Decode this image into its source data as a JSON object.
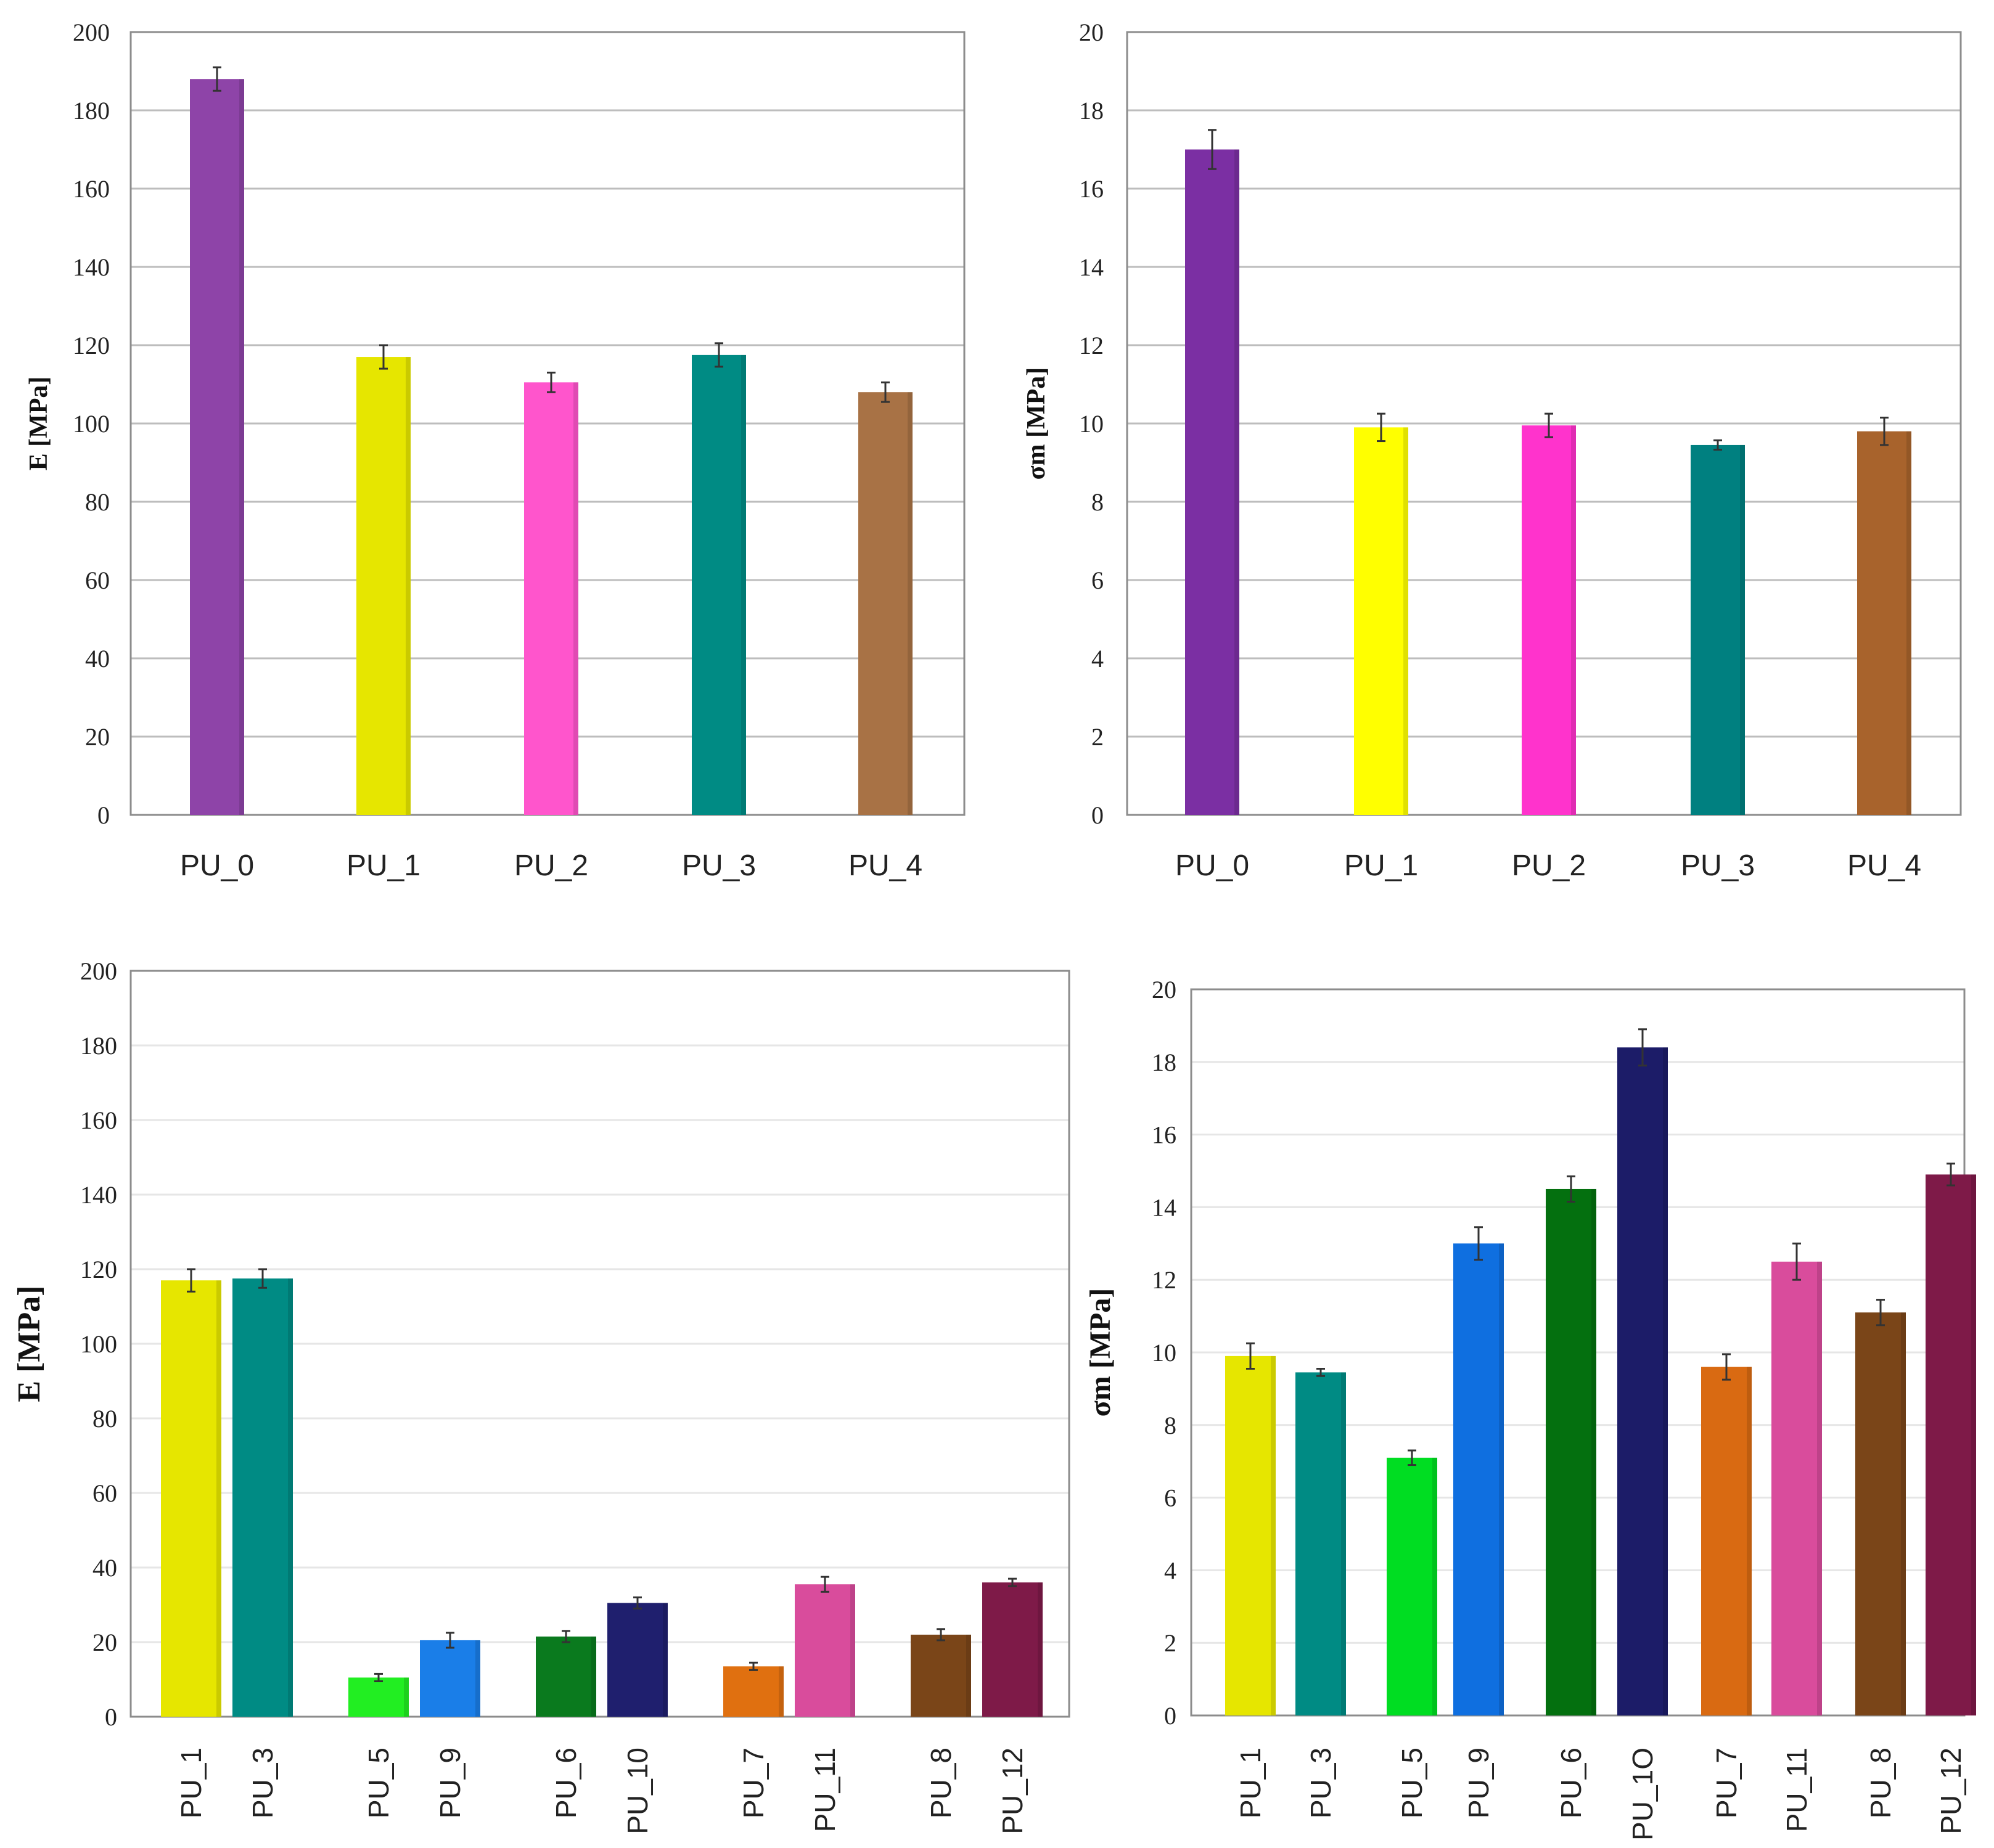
{
  "chart_data": [
    {
      "type": "bar",
      "panel": "top-left",
      "title": "",
      "xlabel": "",
      "ylabel": "E [MPa]",
      "ylim": [
        0,
        200
      ],
      "yticks": [
        "0",
        "20",
        "40",
        "60",
        "80",
        "100",
        "120",
        "140",
        "160",
        "180",
        "200"
      ],
      "categories": [
        "PU_0",
        "PU_1",
        "PU_2",
        "PU_3",
        "PU_4"
      ],
      "values": [
        188,
        117,
        110.5,
        117.5,
        108
      ],
      "errors": [
        3,
        3,
        2.5,
        3,
        2.5
      ],
      "colors": [
        "#8e44a8",
        "#e6e600",
        "#ff55cc",
        "#008b84",
        "#a87245"
      ]
    },
    {
      "type": "bar",
      "panel": "top-right",
      "title": "",
      "xlabel": "",
      "ylabel": "σm [MPa]",
      "ylim": [
        0,
        20
      ],
      "yticks": [
        "0",
        "2",
        "4",
        "6",
        "8",
        "10",
        "12",
        "14",
        "16",
        "18",
        "20"
      ],
      "categories": [
        "PU_0",
        "PU_1",
        "PU_2",
        "PU_3",
        "PU_4"
      ],
      "values": [
        17,
        9.9,
        9.95,
        9.45,
        9.8
      ],
      "errors": [
        0.5,
        0.35,
        0.3,
        0.12,
        0.35
      ],
      "colors": [
        "#7b2fa3",
        "#ffff00",
        "#ff33cc",
        "#008080",
        "#a8632c"
      ]
    },
    {
      "type": "bar",
      "panel": "bottom-left",
      "title": "",
      "xlabel": "",
      "ylabel": "E [MPa]",
      "ylim": [
        0,
        200
      ],
      "yticks": [
        "0",
        "20",
        "40",
        "60",
        "80",
        "100",
        "120",
        "140",
        "160",
        "180",
        "200"
      ],
      "categories": [
        "PU_1",
        "PU_3",
        "PU_5",
        "PU_9",
        "PU_6",
        "PU_10",
        "PU_7",
        "PU_11",
        "PU_8",
        "PU_12"
      ],
      "values": [
        117,
        117.5,
        10.5,
        20.5,
        21.5,
        30.5,
        13.5,
        35.5,
        22,
        36
      ],
      "errors": [
        3,
        2.5,
        1,
        2,
        1.5,
        1.5,
        1,
        2,
        1.5,
        1
      ],
      "colors": [
        "#e6e600",
        "#008b84",
        "#22ee22",
        "#1a7ee8",
        "#0a7a1e",
        "#1f1f6e",
        "#e07010",
        "#d94c9c",
        "#7a4518",
        "#7e1a48"
      ]
    },
    {
      "type": "bar",
      "panel": "bottom-right",
      "title": "",
      "xlabel": "",
      "ylabel": "σm [MPa]",
      "ylim": [
        0,
        20
      ],
      "yticks": [
        "0",
        "2",
        "4",
        "6",
        "8",
        "10",
        "12",
        "14",
        "16",
        "18",
        "20"
      ],
      "categories": [
        "PU_1",
        "PU_3",
        "PU_5",
        "PU_9",
        "PU_6",
        "PU_1O",
        "PU_7",
        "PU_11",
        "PU_8",
        "PU_12"
      ],
      "values": [
        9.9,
        9.45,
        7.1,
        13,
        14.5,
        18.4,
        9.6,
        12.5,
        11.1,
        14.9
      ],
      "errors": [
        0.35,
        0.1,
        0.2,
        0.45,
        0.35,
        0.5,
        0.35,
        0.5,
        0.35,
        0.3
      ],
      "colors": [
        "#e6e600",
        "#008b84",
        "#00dd22",
        "#0f6fe0",
        "#04700f",
        "#1c1c68",
        "#d96a12",
        "#d94c9c",
        "#7a4518",
        "#7e1a48"
      ]
    }
  ]
}
